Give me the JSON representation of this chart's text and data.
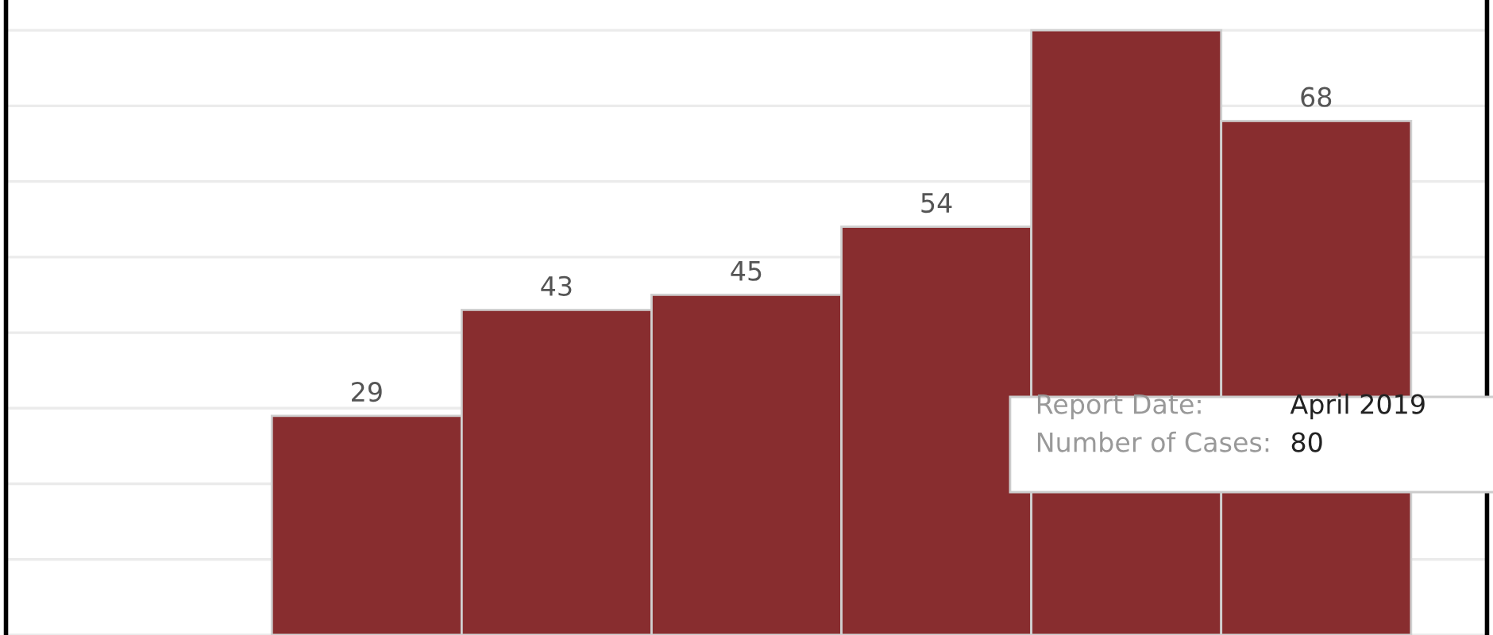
{
  "chart_data": {
    "type": "bar",
    "categories": [
      null,
      null,
      null,
      null,
      null,
      null
    ],
    "values": [
      29,
      43,
      45,
      54,
      80,
      68
    ],
    "value_labels": [
      "29",
      "43",
      "45",
      "54",
      null,
      "68"
    ],
    "color": "#882d2f",
    "grid": "y",
    "tick_labels": false,
    "annotations": [
      "Report Date:",
      "April 2019",
      "Number of Cases:",
      "80"
    ]
  }
}
